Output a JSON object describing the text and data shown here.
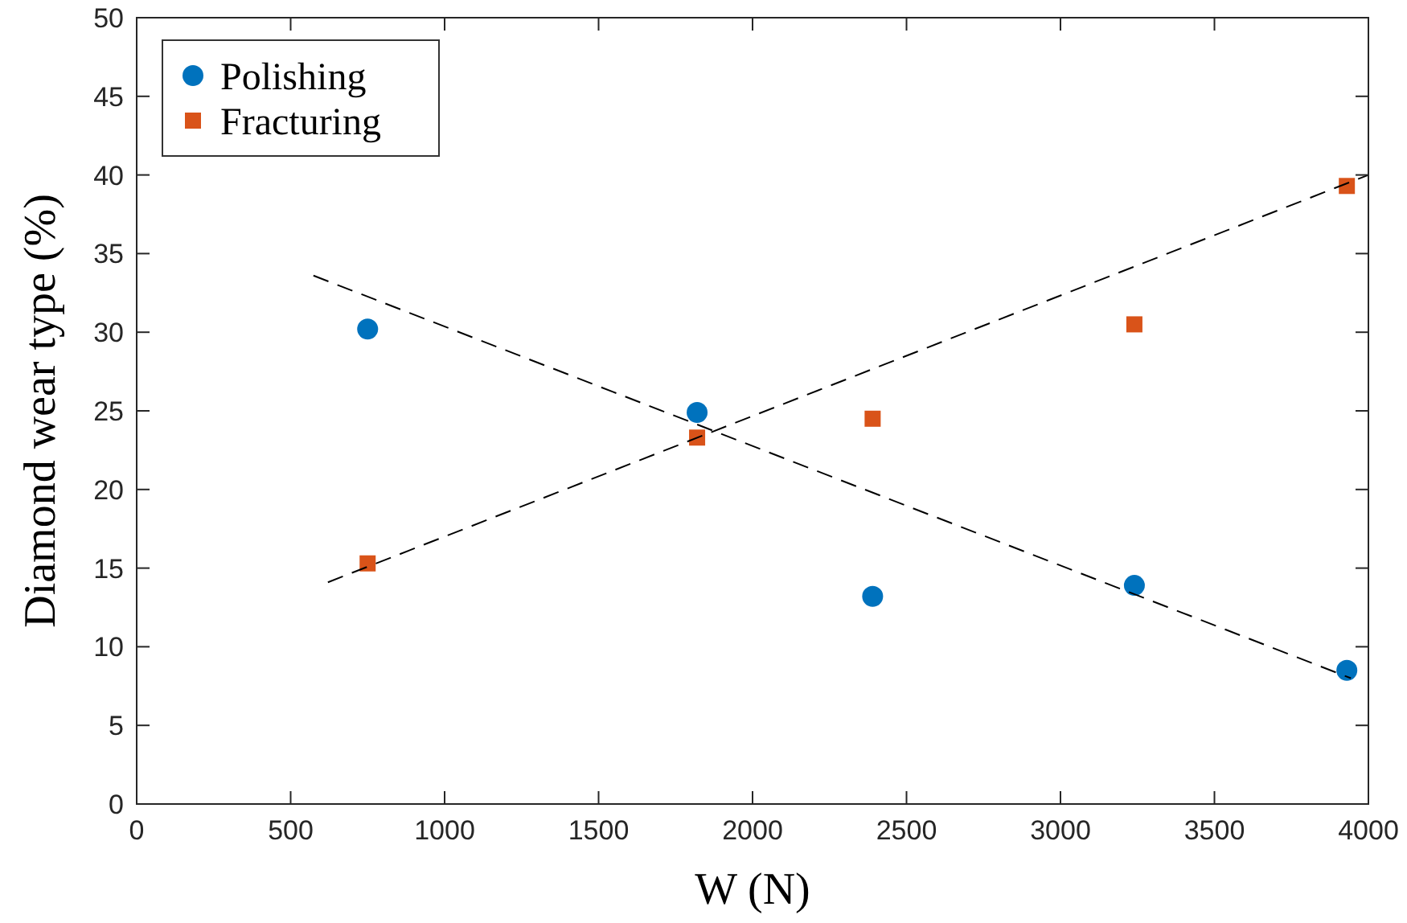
{
  "chart_data": {
    "type": "scatter",
    "xlabel": "W (N)",
    "ylabel": "Diamond wear type (%)",
    "xlim": [
      0,
      4000
    ],
    "xticks": [
      0,
      500,
      1000,
      1500,
      2000,
      2500,
      3000,
      3500,
      4000
    ],
    "ylim": [
      0,
      50
    ],
    "yticks": [
      0,
      5,
      10,
      15,
      20,
      25,
      30,
      35,
      40,
      45,
      50
    ],
    "grid": false,
    "legend": "top left",
    "series": [
      {
        "name": "Polishing",
        "marker": "circle",
        "color": "#0072bd",
        "x": [
          750,
          1820,
          2390,
          3240,
          3930
        ],
        "values": [
          30.2,
          24.9,
          13.2,
          13.9,
          8.5
        ]
      },
      {
        "name": "Fracturing",
        "marker": "square",
        "color": "#d95319",
        "x": [
          750,
          1820,
          2390,
          3240,
          3930
        ],
        "values": [
          15.3,
          23.3,
          24.5,
          30.5,
          39.3
        ]
      },
      {
        "type": "line",
        "line_style": "dashed",
        "marker": "none",
        "color": "#000000",
        "x": [
          574,
          3943
        ],
        "values": [
          33.6,
          8.0
        ]
      },
      {
        "type": "line",
        "line_style": "dashed",
        "marker": "none",
        "color": "#000000",
        "x": [
          621,
          4000
        ],
        "values": [
          14.1,
          40.0
        ]
      }
    ]
  }
}
